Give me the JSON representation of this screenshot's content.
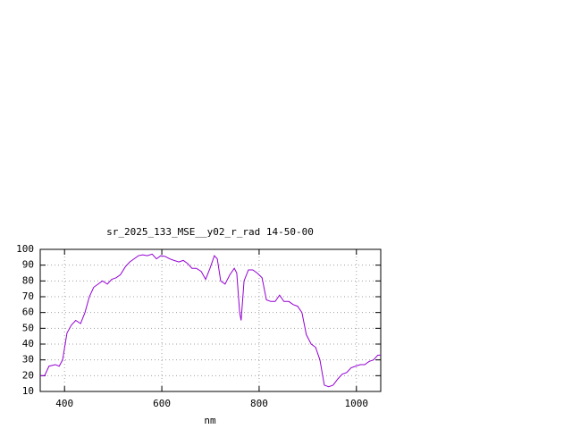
{
  "chart_data": {
    "type": "line",
    "title": "sr_2025_133_MSE__y02_r_rad 14-50-00",
    "x_label": "nm",
    "x": [
      350,
      359,
      368,
      381,
      389,
      396,
      405,
      414,
      423,
      433,
      442,
      451,
      460,
      469,
      478,
      488,
      497,
      506,
      515,
      525,
      534,
      543,
      552,
      561,
      570,
      580,
      589,
      598,
      607,
      616,
      625,
      635,
      644,
      653,
      662,
      671,
      681,
      690,
      699,
      708,
      714,
      721,
      730,
      740,
      749,
      754,
      760,
      763,
      769,
      778,
      787,
      796,
      806,
      815,
      824,
      833,
      842,
      851,
      861,
      870,
      879,
      888,
      897,
      907,
      916,
      925,
      934,
      943,
      952,
      962,
      971,
      980,
      989,
      998,
      1008,
      1017,
      1026,
      1035,
      1044,
      1050
    ],
    "series": [
      {
        "color": "#9400d3",
        "values": [
          20,
          20,
          26,
          27,
          26,
          30,
          47,
          52,
          55,
          53,
          60,
          70,
          76,
          78,
          80,
          78,
          81,
          82,
          84,
          89,
          92,
          94,
          96,
          96.5,
          96,
          97,
          94,
          96,
          95.5,
          94,
          93,
          92,
          93,
          91,
          88,
          88,
          86,
          81,
          88,
          96,
          94,
          80,
          78,
          84,
          88,
          85,
          60,
          55,
          80,
          87,
          87,
          85,
          82,
          68,
          67,
          67,
          71,
          67,
          67,
          65,
          64,
          60,
          46,
          40,
          38,
          30,
          14,
          13,
          14,
          18,
          21,
          22,
          25,
          26,
          27,
          27,
          29,
          30,
          33,
          33
        ]
      }
    ],
    "xlim": [
      350,
      1050
    ],
    "xticks": [
      400,
      600,
      800,
      1000
    ],
    "ylim": [
      10,
      100
    ],
    "yticks": [
      10,
      20,
      30,
      40,
      50,
      60,
      70,
      80,
      90,
      100
    ],
    "grid": true
  }
}
